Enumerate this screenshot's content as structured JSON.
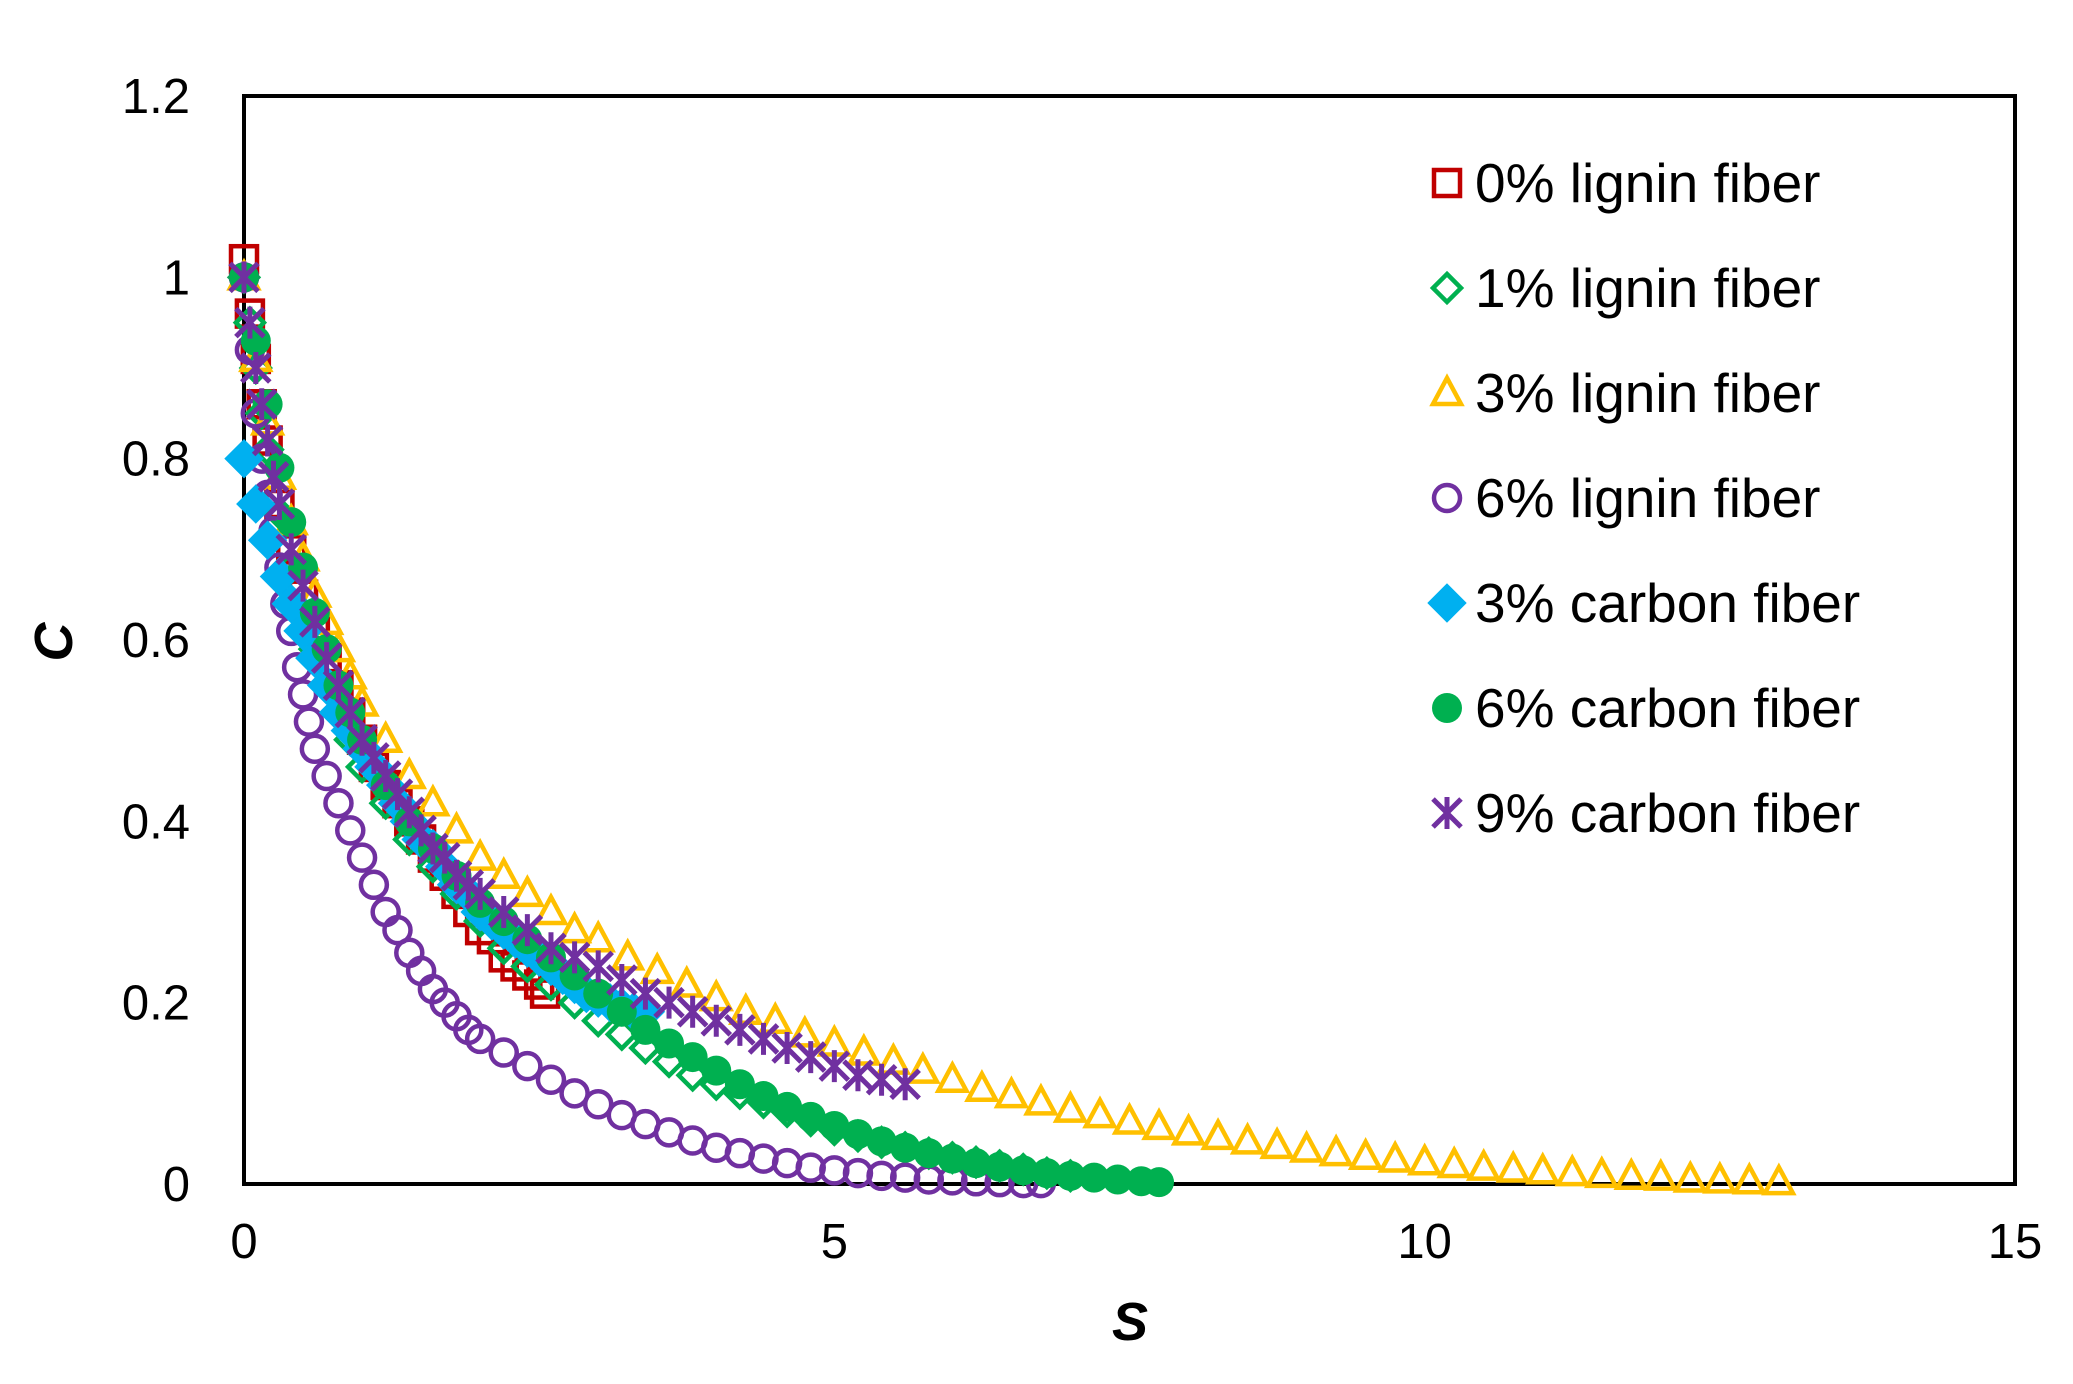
{
  "chart_data": {
    "type": "scatter",
    "title": "",
    "xlabel": "S",
    "ylabel": "C",
    "xlim": [
      0,
      15
    ],
    "ylim": [
      0,
      1.2
    ],
    "x_ticks": [
      "0",
      "5",
      "10",
      "15"
    ],
    "y_ticks": [
      "0",
      "0.2",
      "0.4",
      "0.6",
      "0.8",
      "1",
      "1.2"
    ],
    "grid": false,
    "legend_position": "top-right",
    "series": [
      {
        "name": "0% lignin fiber",
        "marker": "square-open",
        "color": "#C00000",
        "points": [
          [
            0.0,
            1.02
          ],
          [
            0.05,
            0.96
          ],
          [
            0.1,
            0.91
          ],
          [
            0.15,
            0.86
          ],
          [
            0.2,
            0.82
          ],
          [
            0.3,
            0.75
          ],
          [
            0.4,
            0.7
          ],
          [
            0.5,
            0.65
          ],
          [
            0.6,
            0.61
          ],
          [
            0.7,
            0.58
          ],
          [
            0.8,
            0.55
          ],
          [
            0.9,
            0.52
          ],
          [
            1.0,
            0.49
          ],
          [
            1.1,
            0.46
          ],
          [
            1.2,
            0.44
          ],
          [
            1.3,
            0.42
          ],
          [
            1.4,
            0.4
          ],
          [
            1.5,
            0.38
          ],
          [
            1.6,
            0.36
          ],
          [
            1.7,
            0.34
          ],
          [
            1.8,
            0.32
          ],
          [
            1.9,
            0.3
          ],
          [
            2.0,
            0.28
          ],
          [
            2.1,
            0.27
          ],
          [
            2.2,
            0.25
          ],
          [
            2.3,
            0.24
          ],
          [
            2.4,
            0.23
          ],
          [
            2.5,
            0.22
          ],
          [
            2.55,
            0.21
          ]
        ]
      },
      {
        "name": "1% lignin fiber",
        "marker": "diamond-open",
        "color": "#00B050",
        "points": [
          [
            0.0,
            1.0
          ],
          [
            0.05,
            0.95
          ],
          [
            0.1,
            0.9
          ],
          [
            0.15,
            0.85
          ],
          [
            0.2,
            0.81
          ],
          [
            0.3,
            0.74
          ],
          [
            0.4,
            0.68
          ],
          [
            0.5,
            0.63
          ],
          [
            0.6,
            0.59
          ],
          [
            0.7,
            0.55
          ],
          [
            0.8,
            0.52
          ],
          [
            0.9,
            0.49
          ],
          [
            1.0,
            0.46
          ],
          [
            1.2,
            0.42
          ],
          [
            1.4,
            0.38
          ],
          [
            1.6,
            0.35
          ],
          [
            1.8,
            0.32
          ],
          [
            2.0,
            0.29
          ],
          [
            2.2,
            0.26
          ],
          [
            2.4,
            0.24
          ],
          [
            2.6,
            0.22
          ],
          [
            2.8,
            0.2
          ],
          [
            3.0,
            0.18
          ],
          [
            3.2,
            0.165
          ],
          [
            3.4,
            0.15
          ],
          [
            3.6,
            0.135
          ],
          [
            3.8,
            0.12
          ],
          [
            4.0,
            0.11
          ],
          [
            4.2,
            0.1
          ],
          [
            4.4,
            0.09
          ],
          [
            4.6,
            0.08
          ],
          [
            4.8,
            0.07
          ],
          [
            5.0,
            0.06
          ],
          [
            5.2,
            0.053
          ],
          [
            5.4,
            0.046
          ],
          [
            5.6,
            0.04
          ],
          [
            5.8,
            0.034
          ],
          [
            6.0,
            0.029
          ],
          [
            6.2,
            0.024
          ],
          [
            6.4,
            0.02
          ],
          [
            6.6,
            0.016
          ],
          [
            6.8,
            0.012
          ],
          [
            7.0,
            0.009
          ]
        ]
      },
      {
        "name": "3% lignin fiber",
        "marker": "triangle-open",
        "color": "#FFC000",
        "points": [
          [
            0.0,
            1.0
          ],
          [
            0.1,
            0.91
          ],
          [
            0.2,
            0.84
          ],
          [
            0.3,
            0.78
          ],
          [
            0.4,
            0.73
          ],
          [
            0.5,
            0.69
          ],
          [
            0.6,
            0.65
          ],
          [
            0.7,
            0.62
          ],
          [
            0.8,
            0.59
          ],
          [
            0.9,
            0.56
          ],
          [
            1.0,
            0.53
          ],
          [
            1.2,
            0.49
          ],
          [
            1.4,
            0.45
          ],
          [
            1.6,
            0.42
          ],
          [
            1.8,
            0.39
          ],
          [
            2.0,
            0.36
          ],
          [
            2.2,
            0.34
          ],
          [
            2.4,
            0.32
          ],
          [
            2.6,
            0.3
          ],
          [
            2.8,
            0.28
          ],
          [
            3.0,
            0.27
          ],
          [
            3.25,
            0.25
          ],
          [
            3.5,
            0.235
          ],
          [
            3.75,
            0.22
          ],
          [
            4.0,
            0.205
          ],
          [
            4.25,
            0.19
          ],
          [
            4.5,
            0.18
          ],
          [
            4.75,
            0.165
          ],
          [
            5.0,
            0.155
          ],
          [
            5.25,
            0.145
          ],
          [
            5.5,
            0.135
          ],
          [
            5.75,
            0.125
          ],
          [
            6.0,
            0.115
          ],
          [
            6.25,
            0.105
          ],
          [
            6.5,
            0.098
          ],
          [
            6.75,
            0.09
          ],
          [
            7.0,
            0.082
          ],
          [
            7.25,
            0.076
          ],
          [
            7.5,
            0.069
          ],
          [
            7.75,
            0.063
          ],
          [
            8.0,
            0.057
          ],
          [
            8.25,
            0.052
          ],
          [
            8.5,
            0.047
          ],
          [
            8.75,
            0.042
          ],
          [
            9.0,
            0.038
          ],
          [
            9.25,
            0.034
          ],
          [
            9.5,
            0.03
          ],
          [
            9.75,
            0.027
          ],
          [
            10.0,
            0.024
          ],
          [
            10.25,
            0.021
          ],
          [
            10.5,
            0.018
          ],
          [
            10.75,
            0.016
          ],
          [
            11.0,
            0.014
          ],
          [
            11.25,
            0.012
          ],
          [
            11.5,
            0.01
          ],
          [
            11.75,
            0.008
          ],
          [
            12.0,
            0.007
          ],
          [
            12.25,
            0.005
          ],
          [
            12.5,
            0.004
          ],
          [
            12.75,
            0.003
          ],
          [
            13.0,
            0.002
          ]
        ]
      },
      {
        "name": "6% lignin fiber",
        "marker": "circle-open",
        "color": "#7030A0",
        "points": [
          [
            0.0,
            1.0
          ],
          [
            0.05,
            0.92
          ],
          [
            0.1,
            0.85
          ],
          [
            0.15,
            0.8
          ],
          [
            0.2,
            0.76
          ],
          [
            0.25,
            0.72
          ],
          [
            0.3,
            0.68
          ],
          [
            0.35,
            0.64
          ],
          [
            0.4,
            0.61
          ],
          [
            0.45,
            0.57
          ],
          [
            0.5,
            0.54
          ],
          [
            0.55,
            0.51
          ],
          [
            0.6,
            0.48
          ],
          [
            0.7,
            0.45
          ],
          [
            0.8,
            0.42
          ],
          [
            0.9,
            0.39
          ],
          [
            1.0,
            0.36
          ],
          [
            1.1,
            0.33
          ],
          [
            1.2,
            0.3
          ],
          [
            1.3,
            0.28
          ],
          [
            1.4,
            0.255
          ],
          [
            1.5,
            0.235
          ],
          [
            1.6,
            0.215
          ],
          [
            1.7,
            0.2
          ],
          [
            1.8,
            0.185
          ],
          [
            1.9,
            0.17
          ],
          [
            2.0,
            0.16
          ],
          [
            2.2,
            0.145
          ],
          [
            2.4,
            0.13
          ],
          [
            2.6,
            0.115
          ],
          [
            2.8,
            0.1
          ],
          [
            3.0,
            0.088
          ],
          [
            3.2,
            0.076
          ],
          [
            3.4,
            0.066
          ],
          [
            3.6,
            0.057
          ],
          [
            3.8,
            0.048
          ],
          [
            4.0,
            0.04
          ],
          [
            4.2,
            0.034
          ],
          [
            4.4,
            0.028
          ],
          [
            4.6,
            0.023
          ],
          [
            4.8,
            0.018
          ],
          [
            5.0,
            0.015
          ],
          [
            5.2,
            0.012
          ],
          [
            5.4,
            0.009
          ],
          [
            5.6,
            0.007
          ],
          [
            5.8,
            0.005
          ],
          [
            6.0,
            0.004
          ],
          [
            6.2,
            0.003
          ],
          [
            6.4,
            0.002
          ],
          [
            6.6,
            0.001
          ],
          [
            6.75,
            0.001
          ]
        ]
      },
      {
        "name": "3% carbon fiber",
        "marker": "diamond-filled",
        "color": "#00B0F0",
        "points": [
          [
            0.0,
            0.8
          ],
          [
            0.1,
            0.75
          ],
          [
            0.2,
            0.71
          ],
          [
            0.3,
            0.67
          ],
          [
            0.4,
            0.64
          ],
          [
            0.5,
            0.61
          ],
          [
            0.6,
            0.58
          ],
          [
            0.7,
            0.55
          ],
          [
            0.8,
            0.52
          ],
          [
            0.9,
            0.5
          ],
          [
            1.0,
            0.48
          ],
          [
            1.1,
            0.46
          ],
          [
            1.2,
            0.44
          ],
          [
            1.3,
            0.42
          ],
          [
            1.4,
            0.4
          ],
          [
            1.5,
            0.38
          ],
          [
            1.6,
            0.37
          ],
          [
            1.7,
            0.35
          ],
          [
            1.8,
            0.33
          ],
          [
            1.9,
            0.32
          ],
          [
            2.0,
            0.3
          ],
          [
            2.1,
            0.29
          ],
          [
            2.2,
            0.28
          ],
          [
            2.3,
            0.27
          ],
          [
            2.4,
            0.26
          ],
          [
            2.5,
            0.25
          ],
          [
            2.6,
            0.24
          ],
          [
            2.7,
            0.23
          ],
          [
            2.8,
            0.22
          ],
          [
            2.9,
            0.21
          ],
          [
            3.0,
            0.205
          ],
          [
            3.1,
            0.2
          ],
          [
            3.2,
            0.195
          ],
          [
            3.3,
            0.19
          ],
          [
            3.4,
            0.19
          ]
        ]
      },
      {
        "name": "6% carbon fiber",
        "marker": "circle-filled",
        "color": "#00B050",
        "points": [
          [
            0.0,
            1.0
          ],
          [
            0.1,
            0.93
          ],
          [
            0.2,
            0.86
          ],
          [
            0.3,
            0.79
          ],
          [
            0.4,
            0.73
          ],
          [
            0.5,
            0.68
          ],
          [
            0.6,
            0.63
          ],
          [
            0.7,
            0.59
          ],
          [
            0.8,
            0.55
          ],
          [
            0.9,
            0.52
          ],
          [
            1.0,
            0.49
          ],
          [
            1.2,
            0.44
          ],
          [
            1.4,
            0.4
          ],
          [
            1.6,
            0.37
          ],
          [
            1.8,
            0.34
          ],
          [
            2.0,
            0.31
          ],
          [
            2.2,
            0.29
          ],
          [
            2.4,
            0.27
          ],
          [
            2.6,
            0.25
          ],
          [
            2.8,
            0.23
          ],
          [
            3.0,
            0.21
          ],
          [
            3.2,
            0.19
          ],
          [
            3.4,
            0.17
          ],
          [
            3.6,
            0.155
          ],
          [
            3.8,
            0.14
          ],
          [
            4.0,
            0.125
          ],
          [
            4.2,
            0.11
          ],
          [
            4.4,
            0.097
          ],
          [
            4.6,
            0.085
          ],
          [
            4.8,
            0.074
          ],
          [
            5.0,
            0.064
          ],
          [
            5.2,
            0.055
          ],
          [
            5.4,
            0.047
          ],
          [
            5.6,
            0.04
          ],
          [
            5.8,
            0.034
          ],
          [
            6.0,
            0.028
          ],
          [
            6.2,
            0.023
          ],
          [
            6.4,
            0.019
          ],
          [
            6.6,
            0.015
          ],
          [
            6.8,
            0.012
          ],
          [
            7.0,
            0.009
          ],
          [
            7.2,
            0.007
          ],
          [
            7.4,
            0.005
          ],
          [
            7.6,
            0.003
          ],
          [
            7.75,
            0.002
          ]
        ]
      },
      {
        "name": "9% carbon fiber",
        "marker": "asterisk",
        "color": "#7030A0",
        "points": [
          [
            0.0,
            1.0
          ],
          [
            0.05,
            0.95
          ],
          [
            0.1,
            0.9
          ],
          [
            0.15,
            0.86
          ],
          [
            0.2,
            0.82
          ],
          [
            0.25,
            0.78
          ],
          [
            0.3,
            0.75
          ],
          [
            0.4,
            0.7
          ],
          [
            0.5,
            0.66
          ],
          [
            0.6,
            0.62
          ],
          [
            0.7,
            0.58
          ],
          [
            0.8,
            0.55
          ],
          [
            0.9,
            0.52
          ],
          [
            1.0,
            0.49
          ],
          [
            1.1,
            0.47
          ],
          [
            1.2,
            0.45
          ],
          [
            1.3,
            0.43
          ],
          [
            1.4,
            0.41
          ],
          [
            1.5,
            0.39
          ],
          [
            1.6,
            0.37
          ],
          [
            1.7,
            0.36
          ],
          [
            1.8,
            0.34
          ],
          [
            1.9,
            0.33
          ],
          [
            2.0,
            0.32
          ],
          [
            2.2,
            0.3
          ],
          [
            2.4,
            0.28
          ],
          [
            2.6,
            0.26
          ],
          [
            2.8,
            0.25
          ],
          [
            3.0,
            0.24
          ],
          [
            3.2,
            0.225
          ],
          [
            3.4,
            0.21
          ],
          [
            3.6,
            0.2
          ],
          [
            3.8,
            0.19
          ],
          [
            4.0,
            0.18
          ],
          [
            4.2,
            0.17
          ],
          [
            4.4,
            0.16
          ],
          [
            4.6,
            0.15
          ],
          [
            4.8,
            0.14
          ],
          [
            5.0,
            0.13
          ],
          [
            5.2,
            0.12
          ],
          [
            5.4,
            0.115
          ],
          [
            5.6,
            0.11
          ]
        ]
      }
    ]
  }
}
